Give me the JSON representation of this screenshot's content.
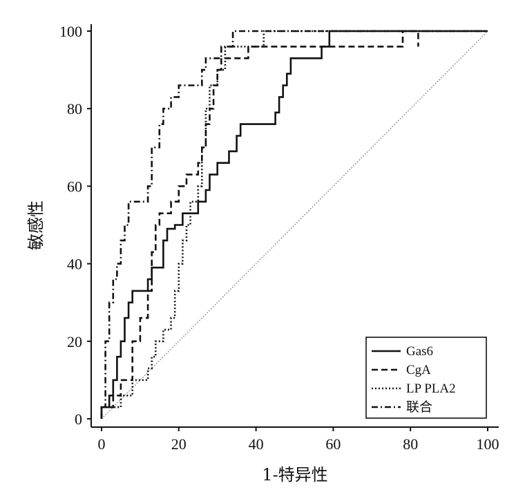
{
  "chart_data": {
    "type": "line",
    "title": "",
    "xlabel": "1-特异性",
    "ylabel": "敏感性",
    "xlim": [
      0,
      100
    ],
    "ylim": [
      0,
      100
    ],
    "xticks": [
      0,
      20,
      40,
      60,
      80,
      100
    ],
    "yticks": [
      0,
      20,
      40,
      60,
      80,
      100
    ],
    "xtick_labels": [
      "0",
      "20",
      "40",
      "60",
      "80",
      "100"
    ],
    "ytick_labels": [
      "0",
      "20",
      "40",
      "60",
      "80",
      "100"
    ],
    "grid": false,
    "legend_position": "bottom-right",
    "reference_line": {
      "name": "diagonal",
      "x": [
        0,
        100
      ],
      "y": [
        0,
        100
      ],
      "style": "dotted",
      "color": "#8a8a8a"
    },
    "series": [
      {
        "name": "Gas6",
        "style": "solid",
        "x": [
          0,
          0,
          2,
          2,
          3,
          3,
          4,
          4,
          5,
          5,
          6,
          6,
          7,
          7,
          8,
          8,
          12,
          12,
          13,
          13,
          16,
          16,
          16,
          16,
          17,
          17,
          19,
          19,
          21,
          21,
          22,
          22,
          25,
          25,
          27,
          27,
          28,
          28,
          30,
          30,
          31,
          31,
          33,
          33,
          35,
          35,
          36,
          36,
          37,
          37,
          45,
          45,
          46,
          46,
          47,
          47,
          48,
          48,
          49,
          49,
          57,
          57,
          59,
          59,
          100
        ],
        "y": [
          0,
          3,
          3,
          6,
          6,
          10,
          10,
          16,
          16,
          20,
          20,
          26,
          26,
          30,
          30,
          33,
          33,
          36,
          36,
          39,
          39,
          43,
          43,
          46,
          46,
          49,
          49,
          50,
          50,
          53,
          53,
          53,
          53,
          56,
          56,
          59,
          59,
          63,
          63,
          66,
          66,
          66,
          66,
          69,
          69,
          73,
          73,
          76,
          76,
          76,
          76,
          79,
          79,
          83,
          83,
          86,
          86,
          89,
          89,
          93,
          93,
          96,
          96,
          100,
          100
        ]
      },
      {
        "name": "CgA",
        "style": "dashed",
        "x": [
          0,
          0,
          2,
          2,
          3,
          3,
          5,
          5,
          8,
          8,
          10,
          10,
          12,
          12,
          13,
          13,
          14,
          14,
          15,
          15,
          18,
          18,
          20,
          20,
          22,
          22,
          25,
          25,
          26,
          26,
          27,
          27,
          28,
          28,
          29,
          29,
          30,
          30,
          31,
          31,
          33,
          33,
          38,
          38,
          58,
          58,
          78,
          78,
          82,
          82
        ],
        "y": [
          0,
          3,
          3,
          3,
          3,
          6,
          6,
          10,
          10,
          20,
          20,
          26,
          26,
          33,
          33,
          43,
          43,
          50,
          50,
          53,
          53,
          56,
          56,
          60,
          60,
          63,
          63,
          66,
          66,
          70,
          70,
          76,
          76,
          80,
          80,
          86,
          86,
          90,
          90,
          93,
          93,
          93,
          93,
          96,
          96,
          96,
          96,
          100,
          100,
          96
        ]
      },
      {
        "name": "LP PLA2",
        "style": "dotted",
        "x": [
          0,
          0,
          2,
          2,
          5,
          5,
          8,
          8,
          12,
          12,
          13,
          13,
          14,
          14,
          16,
          16,
          18,
          18,
          19,
          19,
          20,
          20,
          21,
          21,
          22,
          22,
          23,
          23,
          25,
          25,
          26,
          26,
          27,
          27,
          28,
          28,
          30,
          30,
          32,
          32,
          36,
          36,
          42,
          42,
          100
        ],
        "y": [
          0,
          3,
          3,
          3,
          3,
          6,
          6,
          10,
          10,
          13,
          13,
          16,
          16,
          20,
          20,
          23,
          23,
          26,
          26,
          33,
          33,
          40,
          40,
          46,
          46,
          50,
          50,
          56,
          56,
          60,
          60,
          70,
          70,
          80,
          80,
          86,
          86,
          90,
          90,
          96,
          96,
          96,
          96,
          100,
          100
        ]
      },
      {
        "name": "联合",
        "style": "dashdot",
        "x": [
          0,
          0,
          1,
          1,
          2,
          2,
          3,
          3,
          4,
          4,
          5,
          5,
          6,
          6,
          7,
          7,
          12,
          12,
          13,
          13,
          15,
          15,
          16,
          16,
          18,
          18,
          20,
          20,
          22,
          22,
          26,
          26,
          27,
          27,
          29,
          29,
          31,
          31,
          32,
          32,
          34,
          34,
          35,
          35,
          100
        ],
        "y": [
          0,
          3,
          3,
          20,
          20,
          30,
          30,
          36,
          36,
          40,
          40,
          46,
          46,
          50,
          50,
          56,
          56,
          60,
          60,
          70,
          70,
          76,
          76,
          80,
          80,
          83,
          83,
          86,
          86,
          86,
          86,
          90,
          90,
          93,
          93,
          93,
          93,
          96,
          96,
          96,
          96,
          100,
          100,
          100,
          100
        ]
      }
    ]
  }
}
